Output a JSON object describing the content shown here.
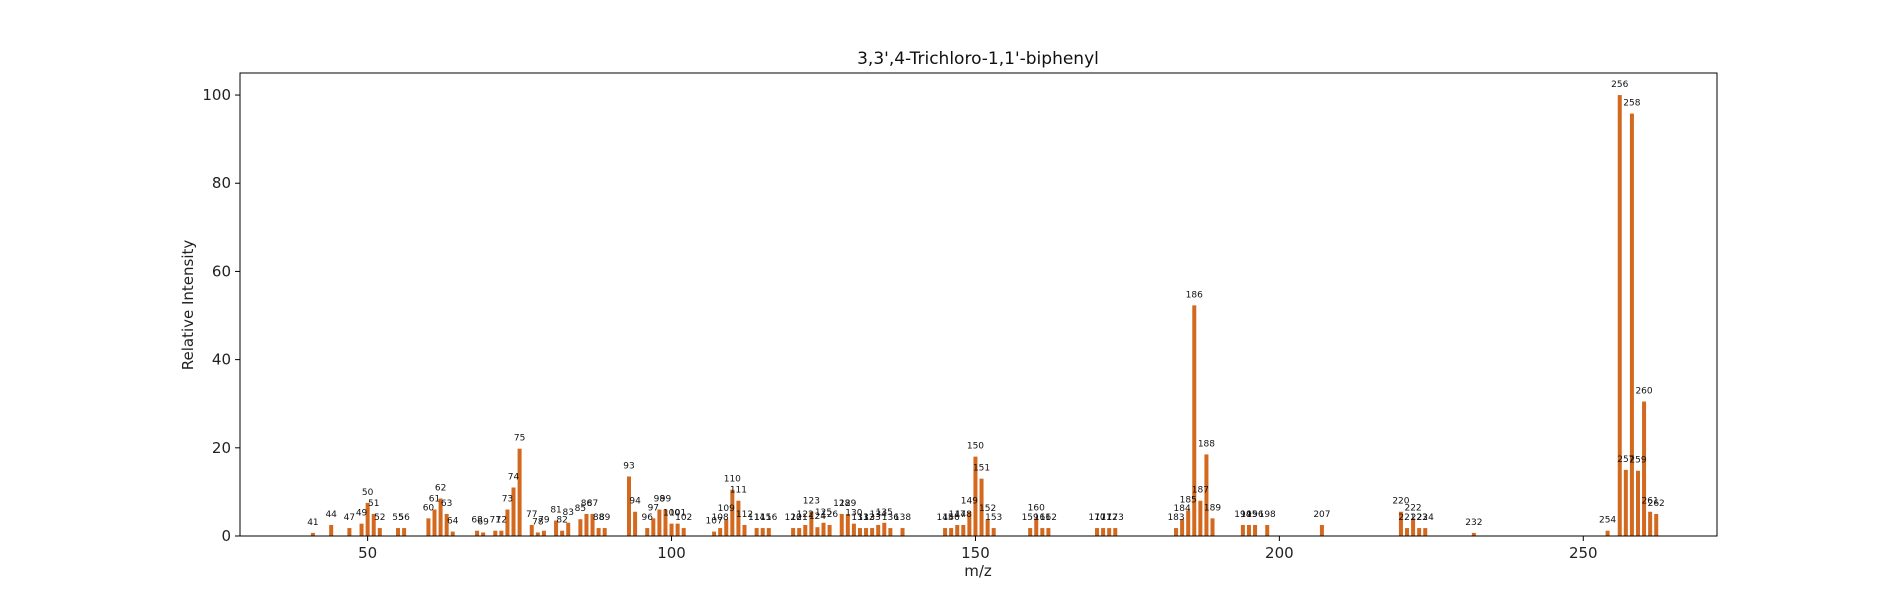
{
  "chart_data": {
    "type": "bar",
    "title": "3,3',4-Trichloro-1,1'-biphenyl",
    "xlabel": "m/z",
    "ylabel": "Relative Intensity",
    "xlim": [
      29,
      272
    ],
    "ylim": [
      0,
      105
    ],
    "xticks": [
      50,
      100,
      150,
      200,
      250
    ],
    "yticks": [
      0,
      20,
      40,
      60,
      80,
      100
    ],
    "grid": false,
    "bar_color": "#d2691e",
    "series": [
      {
        "x": [
          41,
          44,
          47,
          49,
          50,
          51,
          52,
          55,
          56,
          60,
          61,
          62,
          63,
          64,
          68,
          69,
          71,
          72,
          73,
          74,
          75,
          77,
          78,
          79,
          81,
          82,
          83,
          85,
          86,
          87,
          88,
          89,
          93,
          94,
          96,
          97,
          98,
          99,
          100,
          101,
          102,
          107,
          108,
          109,
          110,
          111,
          112,
          114,
          115,
          116,
          120,
          121,
          122,
          123,
          124,
          125,
          126,
          128,
          129,
          130,
          131,
          132,
          133,
          134,
          135,
          136,
          138,
          145,
          146,
          147,
          148,
          149,
          150,
          151,
          152,
          153,
          159,
          160,
          161,
          162,
          170,
          171,
          172,
          173,
          183,
          184,
          185,
          186,
          187,
          188,
          189,
          194,
          195,
          196,
          198,
          207,
          220,
          221,
          222,
          223,
          224,
          232,
          254,
          256,
          257,
          258,
          259,
          260,
          261,
          262
        ],
        "values": [
          0.7,
          2.5,
          1.8,
          2.8,
          7.5,
          5.0,
          1.8,
          1.8,
          1.8,
          4.0,
          6.0,
          8.5,
          5.0,
          1.0,
          1.2,
          0.8,
          1.2,
          1.2,
          6.0,
          11.0,
          19.8,
          2.5,
          0.8,
          1.2,
          3.5,
          1.2,
          3.0,
          3.8,
          5.0,
          5.0,
          1.8,
          1.8,
          13.5,
          5.5,
          1.8,
          4.0,
          6.0,
          6.0,
          2.8,
          2.8,
          1.8,
          1.0,
          1.8,
          3.8,
          10.5,
          8.0,
          2.5,
          1.8,
          1.8,
          1.8,
          1.8,
          1.8,
          2.5,
          5.5,
          2.0,
          3.0,
          2.5,
          5.0,
          5.0,
          2.8,
          1.8,
          1.8,
          1.8,
          2.5,
          3.0,
          1.8,
          1.8,
          1.8,
          1.8,
          2.5,
          2.5,
          5.5,
          18.0,
          13.0,
          3.8,
          1.8,
          1.8,
          4.0,
          1.8,
          1.8,
          1.8,
          1.8,
          1.8,
          1.8,
          1.8,
          3.8,
          5.8,
          52.3,
          8.0,
          18.5,
          4.0,
          2.5,
          2.5,
          2.5,
          2.5,
          2.5,
          5.5,
          1.8,
          4.0,
          1.8,
          1.8,
          0.7,
          1.2,
          100,
          15.0,
          95.8,
          14.8,
          30.5,
          5.5,
          5.0
        ]
      }
    ]
  }
}
